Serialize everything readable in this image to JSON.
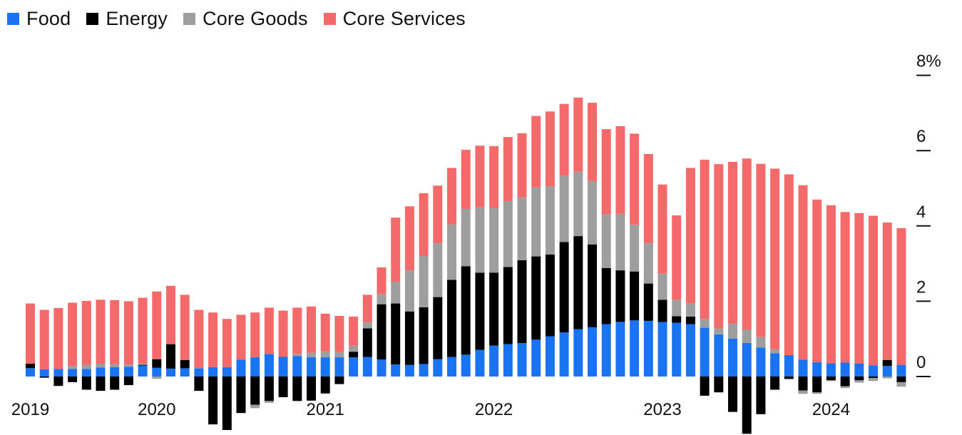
{
  "legend": [
    {
      "label": "Food",
      "color": "#1a73f0"
    },
    {
      "label": "Energy",
      "color": "#000000"
    },
    {
      "label": "Core Goods",
      "color": "#9e9e9e"
    },
    {
      "label": "Core Services",
      "color": "#f46a6a"
    }
  ],
  "chart_data": {
    "type": "bar",
    "stacked": true,
    "y_axis_position": "right",
    "y_tick_labels": [
      "0",
      "2",
      "4",
      "6",
      "8%"
    ],
    "y_ticks": [
      0,
      2,
      4,
      6,
      8
    ],
    "ylim": [
      -1.6,
      9.0
    ],
    "grid": false,
    "legend_position": "top-left",
    "x_tick_labels": [
      {
        "label": "2019",
        "index": 0
      },
      {
        "label": "2020",
        "index": 9
      },
      {
        "label": "2021",
        "index": 21
      },
      {
        "label": "2022",
        "index": 33
      },
      {
        "label": "2023",
        "index": 45
      },
      {
        "label": "2024",
        "index": 57
      }
    ],
    "categories": [
      "2019-01",
      "2019-02",
      "2019-03",
      "2019-04",
      "2019-05",
      "2019-06",
      "2019-07",
      "2019-08",
      "2019-09",
      "2019-10",
      "2019-11",
      "2019-12",
      "2020-01",
      "2020-02",
      "2020-03",
      "2020-04",
      "2020-05",
      "2020-06",
      "2020-07",
      "2020-08",
      "2020-09",
      "2020-10",
      "2020-11",
      "2020-12",
      "2021-01",
      "2021-02",
      "2021-03",
      "2021-04",
      "2021-05",
      "2021-06",
      "2021-07",
      "2021-08",
      "2021-09",
      "2021-10",
      "2021-11",
      "2021-12",
      "2022-01",
      "2022-02",
      "2022-03",
      "2022-04",
      "2022-05",
      "2022-06",
      "2022-07",
      "2022-08",
      "2022-09",
      "2022-10",
      "2022-11",
      "2022-12",
      "2023-01",
      "2023-02",
      "2023-03",
      "2023-04",
      "2023-05",
      "2023-06",
      "2023-07",
      "2023-08",
      "2023-09",
      "2023-10",
      "2023-11",
      "2023-12",
      "2024-01",
      "2024-02",
      "2024-03"
    ],
    "series": [
      {
        "name": "Food",
        "color": "#1a73f0",
        "values": [
          0.22,
          0.19,
          0.2,
          0.2,
          0.2,
          0.24,
          0.25,
          0.26,
          0.29,
          0.23,
          0.21,
          0.22,
          0.22,
          0.25,
          0.25,
          0.45,
          0.51,
          0.6,
          0.52,
          0.54,
          0.51,
          0.51,
          0.51,
          0.51,
          0.52,
          0.45,
          0.32,
          0.31,
          0.33,
          0.46,
          0.52,
          0.58,
          0.71,
          0.82,
          0.86,
          0.89,
          0.98,
          1.07,
          1.17,
          1.26,
          1.31,
          1.39,
          1.45,
          1.49,
          1.48,
          1.45,
          1.43,
          1.39,
          1.3,
          1.12,
          1.01,
          0.89,
          0.77,
          0.62,
          0.57,
          0.45,
          0.38,
          0.35,
          0.37,
          0.34,
          0.3,
          0.28,
          0.31
        ]
      },
      {
        "name": "Energy",
        "color": "#000000",
        "values": [
          0.12,
          -0.03,
          -0.25,
          -0.15,
          -0.35,
          -0.38,
          -0.35,
          -0.23,
          0.02,
          0.23,
          0.65,
          0.22,
          -0.38,
          -1.27,
          -1.42,
          -0.97,
          -0.75,
          -0.65,
          -0.55,
          -0.65,
          -0.64,
          -0.45,
          -0.2,
          0.15,
          0.76,
          1.47,
          1.62,
          1.42,
          1.51,
          1.65,
          2.05,
          2.35,
          2.05,
          1.94,
          2.05,
          2.2,
          2.21,
          2.17,
          2.4,
          2.47,
          2.2,
          1.49,
          1.37,
          1.3,
          0.99,
          0.59,
          0.17,
          0.2,
          -0.51,
          -0.42,
          -0.94,
          -1.52,
          -1.0,
          -0.35,
          -0.06,
          -0.37,
          -0.42,
          -0.1,
          -0.26,
          -0.1,
          -0.04,
          0.16,
          -0.15
        ]
      },
      {
        "name": "Core Goods",
        "color": "#9e9e9e",
        "values": [
          0.0,
          0.0,
          0.0,
          0.08,
          0.11,
          0.1,
          0.08,
          0.06,
          0.04,
          -0.06,
          0.0,
          0.0,
          0.0,
          0.0,
          0.0,
          0.0,
          -0.09,
          -0.05,
          0.0,
          0.06,
          0.12,
          0.16,
          0.14,
          0.16,
          0.16,
          0.27,
          0.58,
          1.09,
          1.36,
          1.43,
          1.47,
          1.52,
          1.73,
          1.72,
          1.75,
          1.67,
          1.83,
          1.81,
          1.76,
          1.71,
          1.68,
          1.43,
          1.5,
          1.24,
          1.07,
          0.69,
          0.44,
          0.35,
          0.23,
          0.16,
          0.39,
          0.36,
          0.28,
          0.1,
          -0.02,
          -0.09,
          -0.04,
          -0.02,
          -0.05,
          -0.06,
          -0.08,
          -0.05,
          -0.12
        ]
      },
      {
        "name": "Core Services",
        "color": "#f46a6a",
        "values": [
          1.6,
          1.58,
          1.62,
          1.68,
          1.7,
          1.7,
          1.7,
          1.68,
          1.74,
          1.8,
          1.55,
          1.73,
          1.55,
          1.45,
          1.28,
          1.19,
          1.19,
          1.23,
          1.23,
          1.23,
          1.23,
          1.0,
          0.96,
          0.77,
          0.73,
          0.71,
          1.7,
          1.7,
          1.67,
          1.53,
          1.5,
          1.57,
          1.64,
          1.64,
          1.7,
          1.7,
          1.9,
          1.99,
          1.91,
          1.97,
          2.08,
          2.26,
          2.33,
          2.42,
          2.37,
          2.37,
          2.24,
          3.6,
          4.23,
          4.36,
          4.3,
          4.54,
          4.6,
          4.8,
          4.8,
          4.63,
          4.32,
          4.2,
          4.0,
          4.0,
          3.97,
          3.65,
          3.63
        ]
      }
    ]
  }
}
